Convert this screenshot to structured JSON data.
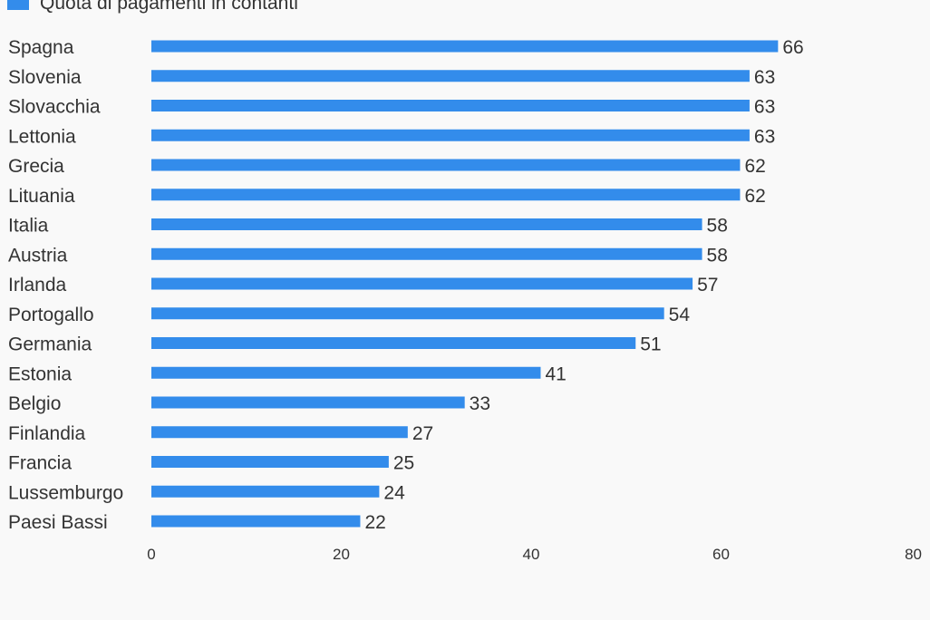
{
  "chart_data": {
    "type": "bar",
    "orientation": "horizontal",
    "legend": [
      "Quota di pagamenti in contanti"
    ],
    "legend_placement": "top-left",
    "categories": [
      "Spagna",
      "Slovenia",
      "Slovacchia",
      "Lettonia",
      "Grecia",
      "Lituania",
      "Italia",
      "Austria",
      "Irlanda",
      "Portogallo",
      "Germania",
      "Estonia",
      "Belgio",
      "Finlandia",
      "Francia",
      "Lussemburgo",
      "Paesi Bassi"
    ],
    "values": [
      66,
      63,
      63,
      63,
      62,
      62,
      58,
      58,
      57,
      54,
      51,
      41,
      33,
      27,
      25,
      24,
      22
    ],
    "xlim": [
      0,
      80
    ],
    "xticks": [
      0,
      20,
      40,
      60,
      80
    ],
    "grid": false,
    "color": "#338ceb"
  }
}
